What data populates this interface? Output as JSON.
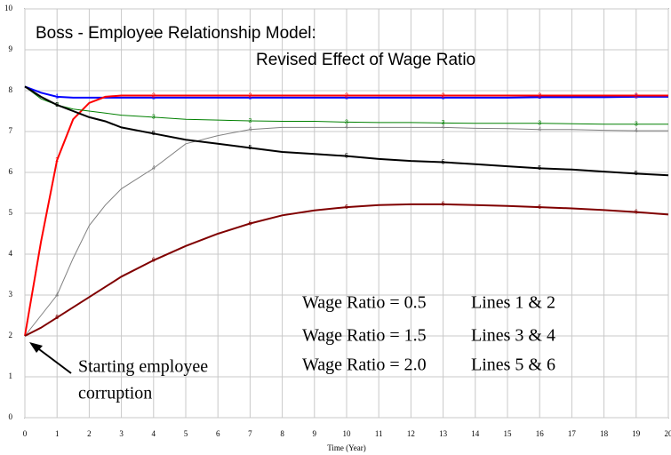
{
  "chart_data": {
    "type": "line",
    "title": "Boss - Employee Relationship Model:",
    "subtitle": "Revised Effect of Wage Ratio",
    "x_label": "Time (Year)",
    "annotations": [
      "Wage Ratio = 0.5",
      "Lines 1 & 2",
      "Wage Ratio = 1.5",
      "Lines 3 & 4",
      "Wage Ratio = 2.0",
      "Lines 5 & 6",
      "Starting employee",
      "corruption"
    ],
    "x": [
      0,
      0.5,
      1,
      1.5,
      2,
      2.5,
      3,
      4,
      5,
      6,
      7,
      8,
      9,
      10,
      11,
      12,
      13,
      14,
      15,
      16,
      17,
      18,
      19,
      20
    ],
    "series": [
      {
        "name": "1",
        "color": "#0000ff",
        "values": [
          8.1,
          7.95,
          7.85,
          7.83,
          7.83,
          7.83,
          7.83,
          7.83,
          7.83,
          7.83,
          7.83,
          7.83,
          7.83,
          7.83,
          7.83,
          7.83,
          7.83,
          7.83,
          7.83,
          7.84,
          7.84,
          7.84,
          7.85,
          7.85
        ]
      },
      {
        "name": "2",
        "color": "#ff0000",
        "values": [
          2,
          4.3,
          6.3,
          7.3,
          7.7,
          7.85,
          7.88,
          7.88,
          7.88,
          7.88,
          7.88,
          7.88,
          7.88,
          7.88,
          7.88,
          7.88,
          7.88,
          7.88,
          7.88,
          7.88,
          7.88,
          7.88,
          7.88,
          7.88
        ]
      },
      {
        "name": "3",
        "color": "#008000",
        "values": [
          8.1,
          7.8,
          7.65,
          7.55,
          7.5,
          7.45,
          7.4,
          7.35,
          7.3,
          7.28,
          7.26,
          7.25,
          7.25,
          7.23,
          7.22,
          7.22,
          7.21,
          7.2,
          7.2,
          7.2,
          7.19,
          7.18,
          7.18,
          7.18
        ]
      },
      {
        "name": "4",
        "color": "#808080",
        "values": [
          2,
          2.5,
          3.0,
          3.9,
          4.7,
          5.2,
          5.6,
          6.1,
          6.7,
          6.9,
          7.05,
          7.1,
          7.1,
          7.1,
          7.1,
          7.1,
          7.1,
          7.08,
          7.07,
          7.05,
          7.05,
          7.03,
          7.02,
          7.02
        ]
      },
      {
        "name": "5",
        "color": "#000000",
        "values": [
          8.1,
          7.85,
          7.65,
          7.5,
          7.35,
          7.25,
          7.1,
          6.95,
          6.8,
          6.7,
          6.6,
          6.5,
          6.45,
          6.4,
          6.33,
          6.28,
          6.25,
          6.2,
          6.15,
          6.1,
          6.07,
          6.02,
          5.97,
          5.93
        ]
      },
      {
        "name": "6",
        "color": "#800000",
        "values": [
          2,
          2.2,
          2.45,
          2.7,
          2.95,
          3.2,
          3.45,
          3.85,
          4.2,
          4.5,
          4.75,
          4.95,
          5.07,
          5.15,
          5.2,
          5.22,
          5.22,
          5.2,
          5.18,
          5.15,
          5.12,
          5.08,
          5.03,
          4.97
        ]
      }
    ],
    "xlim": [
      0,
      20
    ],
    "ylim": [
      0,
      10
    ],
    "xticks": [
      0,
      1,
      2,
      3,
      4,
      5,
      6,
      7,
      8,
      9,
      10,
      11,
      12,
      13,
      14,
      15,
      16,
      17,
      18,
      19,
      20
    ],
    "yticks": [
      0,
      1,
      2,
      3,
      4,
      5,
      6,
      7,
      8,
      9,
      10
    ],
    "grid": true
  }
}
